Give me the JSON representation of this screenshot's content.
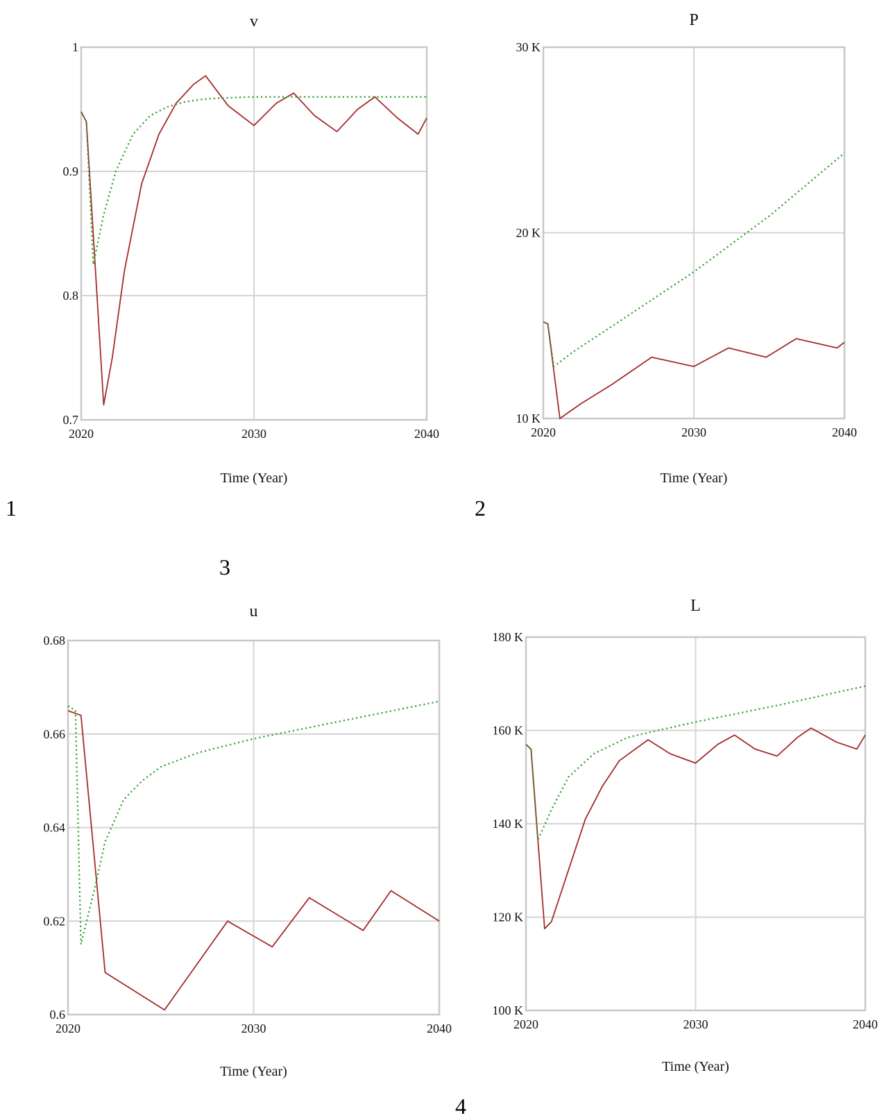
{
  "panel_numbers": {
    "p1": "1",
    "p2": "2",
    "p3": "3",
    "p4": "4"
  },
  "colors": {
    "baseline": "#a52a2a",
    "scenario": "#2ca02c",
    "grid": "#d4d4d4",
    "frame": "#c8c8c8"
  },
  "chart_data": [
    {
      "type": "line",
      "title": "v",
      "xlabel": "Time (Year)",
      "ylabel": "",
      "xlim": [
        2020,
        2040
      ],
      "ylim": [
        0.7,
        1
      ],
      "xticks": [
        2020,
        2030,
        2040
      ],
      "xtick_labels": [
        "2020",
        "2030",
        "2040"
      ],
      "yticks": [
        0.7,
        0.8,
        0.9,
        1
      ],
      "ytick_labels": [
        "0.7",
        "0.8",
        "0.9",
        "1"
      ],
      "grid": true,
      "series": [
        {
          "style": "solid",
          "color": "#a52a2a",
          "x": [
            2020,
            2020.3,
            2021.3,
            2021.8,
            2022.5,
            2023.5,
            2024.5,
            2025.5,
            2026.5,
            2027.2,
            2028.5,
            2030,
            2031.3,
            2032.3,
            2033.5,
            2034.8,
            2036,
            2037,
            2038.3,
            2039.5,
            2040
          ],
          "y": [
            0.948,
            0.94,
            0.712,
            0.75,
            0.82,
            0.89,
            0.93,
            0.955,
            0.97,
            0.977,
            0.953,
            0.937,
            0.955,
            0.963,
            0.945,
            0.932,
            0.95,
            0.96,
            0.943,
            0.93,
            0.943
          ]
        },
        {
          "style": "dotted",
          "color": "#2ca02c",
          "x": [
            2020,
            2020.3,
            2020.7,
            2021.3,
            2022,
            2023,
            2024,
            2025,
            2026,
            2027,
            2028,
            2030,
            2035,
            2040
          ],
          "y": [
            0.948,
            0.94,
            0.825,
            0.865,
            0.9,
            0.93,
            0.945,
            0.952,
            0.956,
            0.958,
            0.959,
            0.96,
            0.96,
            0.96
          ]
        }
      ]
    },
    {
      "type": "line",
      "title": "P",
      "xlabel": "Time (Year)",
      "ylabel": "",
      "xlim": [
        2020,
        2040
      ],
      "ylim": [
        10000,
        30000
      ],
      "xticks": [
        2020,
        2030,
        2040
      ],
      "xtick_labels": [
        "2020",
        "2030",
        "2040"
      ],
      "yticks": [
        10000,
        20000,
        30000
      ],
      "ytick_labels": [
        "10 K",
        "20 K",
        "30 K"
      ],
      "grid": true,
      "series": [
        {
          "style": "solid",
          "color": "#a52a2a",
          "x": [
            2020,
            2020.3,
            2021.1,
            2022.5,
            2024.5,
            2027.2,
            2030,
            2032.3,
            2034.8,
            2036.8,
            2039.5,
            2040
          ],
          "y": [
            15200,
            15100,
            10000,
            10800,
            11800,
            13300,
            12800,
            13800,
            13300,
            14300,
            13800,
            14100
          ]
        },
        {
          "style": "dotted",
          "color": "#2ca02c",
          "x": [
            2020,
            2020.3,
            2020.7,
            2022,
            2025,
            2030,
            2035,
            2040
          ],
          "y": [
            15200,
            15100,
            12800,
            13600,
            15200,
            17900,
            20900,
            24300
          ]
        }
      ]
    },
    {
      "type": "line",
      "title": "u",
      "xlabel": "Time (Year)",
      "ylabel": "",
      "xlim": [
        2020,
        2040
      ],
      "ylim": [
        0.6,
        0.68
      ],
      "xticks": [
        2020,
        2030,
        2040
      ],
      "xtick_labels": [
        "2020",
        "2030",
        "2040"
      ],
      "yticks": [
        0.6,
        0.62,
        0.64,
        0.66,
        0.68
      ],
      "ytick_labels": [
        "0.6",
        "0.62",
        "0.64",
        "0.66",
        "0.68"
      ],
      "grid": true,
      "series": [
        {
          "style": "solid",
          "color": "#a52a2a",
          "x": [
            2020,
            2020.7,
            2022,
            2025.2,
            2028.6,
            2031,
            2033,
            2035.9,
            2037.4,
            2040
          ],
          "y": [
            0.665,
            0.664,
            0.609,
            0.601,
            0.62,
            0.6145,
            0.625,
            0.618,
            0.6265,
            0.62
          ]
        },
        {
          "style": "dotted",
          "color": "#2ca02c",
          "x": [
            2020,
            2020.4,
            2020.7,
            2021.5,
            2022,
            2023,
            2024,
            2025,
            2027,
            2030,
            2035,
            2040
          ],
          "y": [
            0.666,
            0.665,
            0.615,
            0.628,
            0.637,
            0.646,
            0.65,
            0.653,
            0.656,
            0.659,
            0.663,
            0.667
          ]
        }
      ]
    },
    {
      "type": "line",
      "title": "L",
      "xlabel": "Time (Year)",
      "ylabel": "",
      "xlim": [
        2020,
        2040
      ],
      "ylim": [
        100000,
        180000
      ],
      "xticks": [
        2020,
        2030,
        2040
      ],
      "xtick_labels": [
        "2020",
        "2030",
        "2040"
      ],
      "yticks": [
        100000,
        120000,
        140000,
        160000,
        180000
      ],
      "ytick_labels": [
        "100 K",
        "120 K",
        "140 K",
        "160 K",
        "180 K"
      ],
      "grid": true,
      "series": [
        {
          "style": "solid",
          "color": "#a52a2a",
          "x": [
            2020,
            2020.3,
            2021.1,
            2021.5,
            2022.5,
            2023.5,
            2024.5,
            2025.5,
            2027.2,
            2028.5,
            2030,
            2031.3,
            2032.3,
            2033.5,
            2034.8,
            2036,
            2036.8,
            2038.3,
            2039.5,
            2040
          ],
          "y": [
            157000,
            156000,
            117500,
            119000,
            130000,
            141000,
            148000,
            153500,
            158000,
            155000,
            153000,
            157000,
            159000,
            156000,
            154500,
            158500,
            160500,
            157500,
            156000,
            159000
          ]
        },
        {
          "style": "dotted",
          "color": "#2ca02c",
          "x": [
            2020,
            2020.3,
            2020.7,
            2021.5,
            2022.5,
            2024,
            2026,
            2028,
            2030,
            2035,
            2040
          ],
          "y": [
            157000,
            156000,
            136500,
            143000,
            150000,
            155000,
            158500,
            160200,
            161800,
            165500,
            169500
          ]
        }
      ]
    }
  ]
}
